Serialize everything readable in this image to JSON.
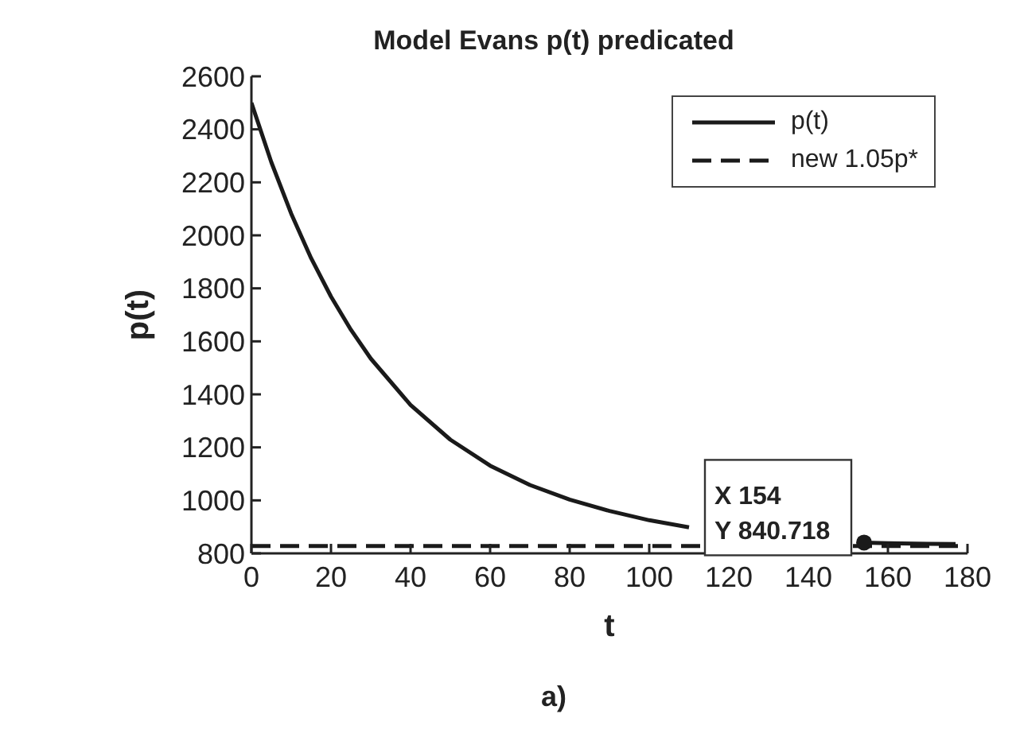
{
  "chart_data": {
    "type": "line",
    "title": "Model Evans p(t) predicated",
    "xlabel": "t",
    "ylabel": "p(t)",
    "xlim": [
      0,
      180
    ],
    "xticks": [
      0,
      20,
      40,
      60,
      80,
      100,
      120,
      140,
      160,
      180
    ],
    "ylim": [
      800,
      2600
    ],
    "yticks": [
      800,
      1000,
      1200,
      1400,
      1600,
      1800,
      2000,
      2200,
      2400,
      2600
    ],
    "grid": false,
    "legend": "top right",
    "marker": "none",
    "series": [
      {
        "name": "p(t)",
        "color": "#1a1a1a",
        "line_style": "solid",
        "x": [
          0,
          5,
          10,
          15,
          20,
          25,
          30,
          40,
          50,
          60,
          70,
          80,
          90,
          100,
          110,
          120,
          130,
          140,
          150,
          154,
          160,
          170,
          177
        ],
        "values": [
          2500,
          2276,
          2082,
          1914,
          1769,
          1644,
          1535,
          1360,
          1229,
          1131,
          1058,
          1003,
          960,
          925,
          898,
          null,
          null,
          null,
          null,
          840.718,
          838,
          836,
          835
        ]
      },
      {
        "name": "new 1.05p*",
        "color": "#1a1a1a",
        "line_style": "dashed",
        "x": [
          0,
          178
        ],
        "values": [
          828,
          828
        ]
      }
    ],
    "annotations": [
      {
        "text": "X 154\nY 840.718",
        "x": 154,
        "y": 840.718
      },
      "a)"
    ]
  }
}
